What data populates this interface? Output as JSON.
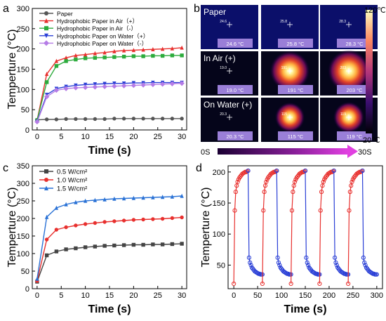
{
  "panel_letters": {
    "a": "a",
    "b": "b",
    "c": "c",
    "d": "d"
  },
  "chart_data": [
    {
      "id": "a",
      "type": "line",
      "xlabel": "Time (s)",
      "ylabel": "Temperture (°C)",
      "xlim": [
        -1,
        31
      ],
      "ylim": [
        0,
        300
      ],
      "xticks": [
        0,
        5,
        10,
        15,
        20,
        25,
        30
      ],
      "yticks": [
        0,
        50,
        100,
        150,
        200,
        250,
        300
      ],
      "legend_position": "top-left",
      "x": [
        0,
        2,
        4,
        6,
        8,
        10,
        12,
        14,
        16,
        18,
        20,
        22,
        24,
        26,
        28,
        30
      ],
      "series": [
        {
          "name": "Paper",
          "color": "#555555",
          "marker": "circle",
          "values": [
            25,
            26,
            26,
            27,
            27,
            27,
            27,
            27,
            28,
            28,
            28,
            28,
            28,
            28,
            28,
            28
          ]
        },
        {
          "name": "Hydrophobic Paper in Air（+）",
          "color": "#e8302e",
          "marker": "triangle-up",
          "values": [
            24,
            138,
            170,
            178,
            184,
            186,
            189,
            191,
            194,
            196,
            197,
            198,
            199,
            200,
            201,
            203
          ]
        },
        {
          "name": "Hydrophobic Paper in Air（-）",
          "color": "#2cab3c",
          "marker": "square",
          "values": [
            24,
            118,
            158,
            170,
            174,
            177,
            178,
            179,
            180,
            181,
            182,
            182,
            183,
            183,
            184,
            184
          ]
        },
        {
          "name": "Hydrophobic Paper on Water（+）",
          "color": "#2a3fd6",
          "marker": "triangle-down",
          "values": [
            21,
            87,
            102,
            107,
            110,
            112,
            113,
            114,
            115,
            115,
            116,
            116,
            117,
            117,
            117,
            117
          ]
        },
        {
          "name": "Hydrophobic Paper on Water（-）",
          "color": "#b57ce6",
          "marker": "diamond",
          "values": [
            20,
            82,
            98,
            102,
            104,
            105,
            106,
            107,
            108,
            109,
            110,
            111,
            112,
            113,
            114,
            115
          ]
        }
      ]
    },
    {
      "id": "c",
      "type": "line",
      "xlabel": "Time (s)",
      "ylabel": "Temperture (°C)",
      "xlim": [
        -1,
        31
      ],
      "ylim": [
        0,
        350
      ],
      "xticks": [
        0,
        5,
        10,
        15,
        20,
        25,
        30
      ],
      "yticks": [
        0,
        50,
        100,
        150,
        200,
        250,
        300,
        350
      ],
      "legend_position": "top-left",
      "x": [
        0,
        2,
        4,
        6,
        8,
        10,
        12,
        14,
        16,
        18,
        20,
        22,
        24,
        26,
        28,
        30
      ],
      "series": [
        {
          "name": "0.5 W/cm²",
          "color": "#444444",
          "marker": "square",
          "values": [
            20,
            95,
            106,
            112,
            115,
            118,
            120,
            122,
            123,
            124,
            125,
            125,
            126,
            126,
            127,
            128
          ]
        },
        {
          "name": "1.0 W/cm²",
          "color": "#e8302e",
          "marker": "circle",
          "values": [
            22,
            140,
            168,
            175,
            180,
            184,
            187,
            190,
            192,
            194,
            196,
            197,
            198,
            199,
            201,
            203
          ]
        },
        {
          "name": "1.5 W/cm²",
          "color": "#2a72d6",
          "marker": "triangle-up",
          "values": [
            28,
            204,
            230,
            240,
            246,
            250,
            252,
            254,
            256,
            257,
            258,
            259,
            260,
            261,
            262,
            264
          ]
        }
      ]
    },
    {
      "id": "d",
      "type": "line",
      "xlabel": "Time (s)",
      "ylabel": "Temperture (°C)",
      "xlim": [
        -12,
        312
      ],
      "ylim": [
        12,
        210
      ],
      "xticks": [
        0,
        50,
        100,
        150,
        200,
        250,
        300
      ],
      "yticks": [
        50,
        100,
        150,
        200
      ],
      "cycles": 5,
      "cycle_period": 60,
      "heating_offsets_s": [
        0,
        2,
        4,
        6,
        8,
        10,
        12,
        14,
        16,
        18,
        20,
        22,
        24,
        26,
        28,
        30
      ],
      "heating_values": [
        20,
        138,
        168,
        178,
        184,
        188,
        191,
        193,
        195,
        197,
        198,
        199,
        200,
        200,
        201,
        202
      ],
      "cooling_offsets_s": [
        30,
        32,
        34,
        36,
        38,
        40,
        42,
        44,
        46,
        48,
        50,
        52,
        54,
        56,
        58,
        60
      ],
      "cooling_values": [
        202,
        62,
        54,
        50,
        46,
        44,
        42,
        40,
        39,
        38,
        37,
        36,
        36,
        35,
        35,
        35
      ],
      "heating_color": "#e8302e",
      "cooling_color": "#2a3fd6"
    }
  ],
  "panel_b": {
    "row_labels": [
      "Paper",
      "In Air (+)",
      "On Water (+)"
    ],
    "readings": [
      [
        "24.6 °C",
        "25.8 °C",
        "28.3 °C"
      ],
      [
        "19.0 °C",
        "191 °C",
        "203 °C"
      ],
      [
        "20.3 °C",
        "115 °C",
        "119 °C"
      ]
    ],
    "spot_labels": [
      [
        "24.6",
        "25.8",
        "28.3"
      ],
      [
        "19.0",
        "191",
        "203"
      ],
      [
        "20.3",
        "115",
        "119"
      ]
    ],
    "hotspot_levels": [
      [
        0.0,
        0.0,
        0.0
      ],
      [
        0.0,
        0.92,
        1.0
      ],
      [
        0.0,
        0.56,
        0.6
      ]
    ],
    "colorbar_max": "120℃",
    "colorbar_min": "20℃",
    "time_start": "0S",
    "time_end": "30S"
  }
}
